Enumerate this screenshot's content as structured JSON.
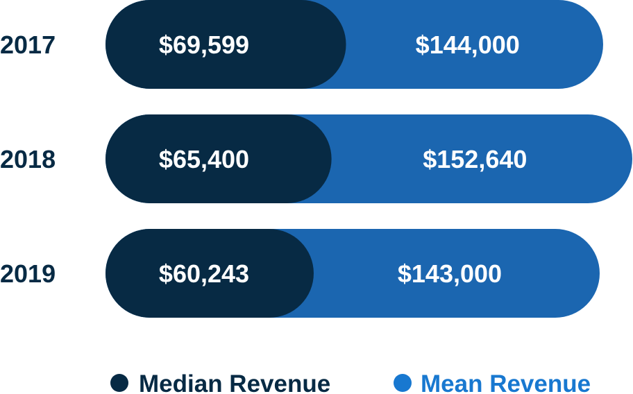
{
  "chart_data": {
    "type": "bar",
    "orientation": "horizontal",
    "stacked": "overlapping",
    "categories": [
      "2017",
      "2018",
      "2019"
    ],
    "series": [
      {
        "name": "Median Revenue",
        "values": [
          69599,
          65400,
          60243
        ],
        "labels": [
          "$69,599",
          "$65,400",
          "$60,243"
        ]
      },
      {
        "name": "Mean Revenue",
        "values": [
          144000,
          152640,
          143000
        ],
        "labels": [
          "$144,000",
          "$152,640",
          "$143,000"
        ]
      }
    ],
    "title": "",
    "xlabel": "",
    "ylabel": "",
    "grid": false,
    "legend": "bottom"
  },
  "colors": {
    "median": "#072a44",
    "mean": "#1b66b0",
    "mean_legend": "#1878d0",
    "year_text": "#072a44"
  },
  "legend": {
    "items": [
      {
        "label": "Median Revenue",
        "color_key": "median"
      },
      {
        "label": "Mean Revenue",
        "color_key": "mean_legend"
      }
    ]
  }
}
